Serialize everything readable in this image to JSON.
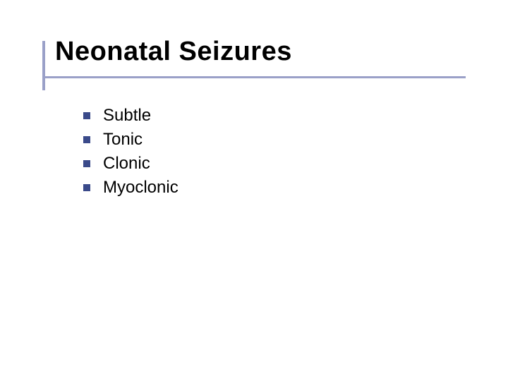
{
  "slide": {
    "title": "Neonatal Seizures",
    "title_fontsize": 38,
    "title_color": "#000000",
    "accent_color": "#9aa0c8",
    "bullet_marker_color": "#3a4a8a",
    "background_color": "#ffffff",
    "bullets": [
      {
        "text": "Subtle"
      },
      {
        "text": "Tonic"
      },
      {
        "text": "Clonic"
      },
      {
        "text": "Myoclonic"
      }
    ],
    "bullet_fontsize": 24,
    "bullet_color": "#000000"
  }
}
